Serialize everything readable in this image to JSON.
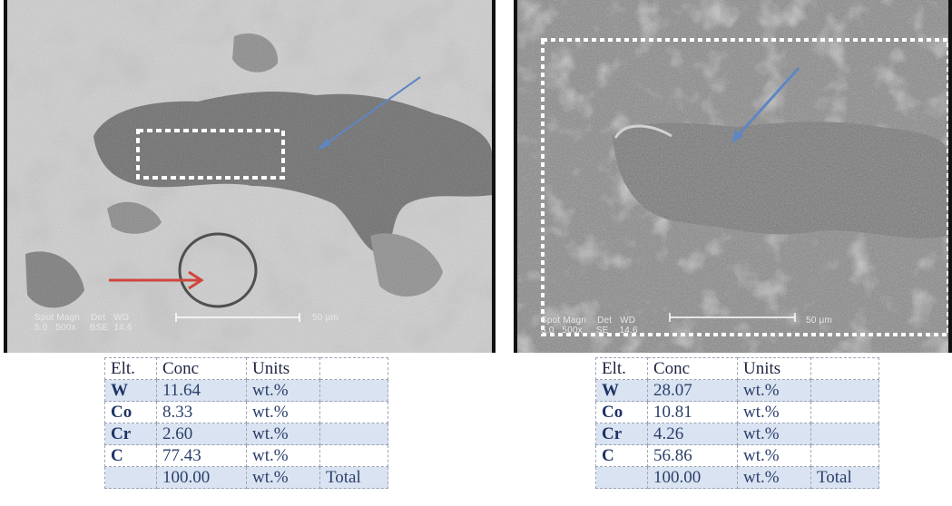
{
  "panels": [
    {
      "caption_line1": "Spot Magn    Det   WD",
      "caption_line2": "5.0   500x     BSE  14.6",
      "scale": "50 μm"
    },
    {
      "caption_line1": "Spot Magn    Det   WD",
      "caption_line2": "5.0   500x     SE    14.6",
      "scale": "50 μm"
    }
  ],
  "tables": [
    {
      "headers": [
        "Elt.",
        "Conc",
        "Units",
        ""
      ],
      "rows": [
        [
          "W",
          "11.64",
          "wt.%",
          ""
        ],
        [
          "Co",
          "8.33",
          "wt.%",
          ""
        ],
        [
          "Cr",
          "2.60",
          "wt.%",
          ""
        ],
        [
          "C",
          "77.43",
          "wt.%",
          ""
        ],
        [
          "",
          "100.00",
          "wt.%",
          "Total"
        ]
      ]
    },
    {
      "headers": [
        "Elt.",
        "Conc",
        "Units",
        ""
      ],
      "rows": [
        [
          "W",
          "28.07",
          "wt.%",
          ""
        ],
        [
          "Co",
          "10.81",
          "wt.%",
          ""
        ],
        [
          "Cr",
          "4.26",
          "wt.%",
          ""
        ],
        [
          "C",
          "56.86",
          "wt.%",
          ""
        ],
        [
          "",
          "100.00",
          "wt.%",
          "Total"
        ]
      ]
    }
  ],
  "colors": {
    "blue_arrow": "#5f86c4",
    "red_arrow": "#d0453d",
    "table_shade": "#d9e3f1",
    "table_text": "#2b3f6b"
  }
}
